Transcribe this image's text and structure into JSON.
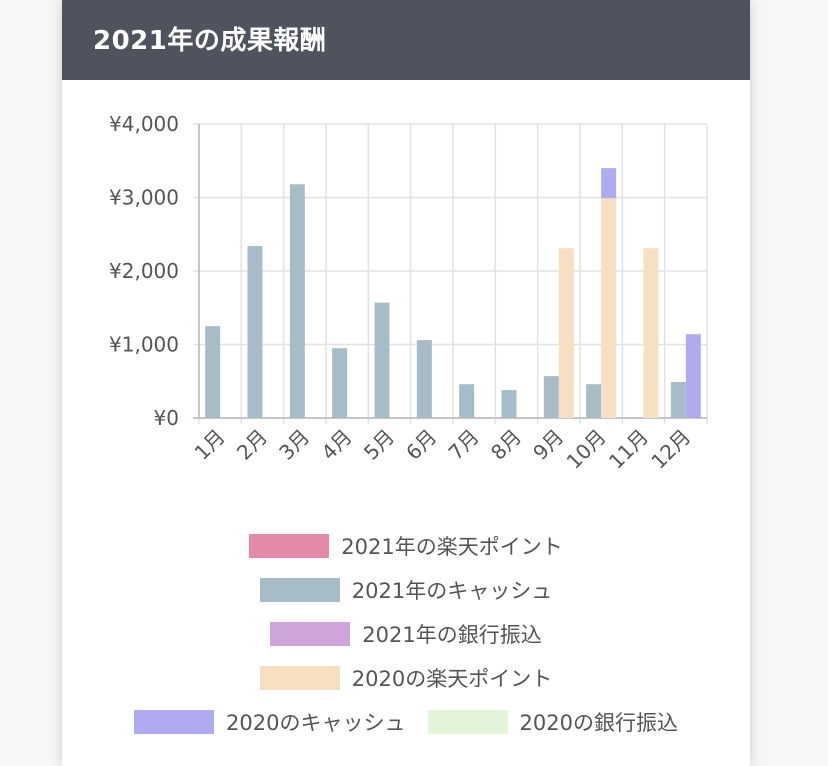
{
  "card": {
    "title": "2021年の成果報酬"
  },
  "chart_data": {
    "type": "bar",
    "stacked": true,
    "categories": [
      "1月",
      "2月",
      "3月",
      "4月",
      "5月",
      "6月",
      "7月",
      "8月",
      "9月",
      "10月",
      "11月",
      "12月"
    ],
    "ylim": [
      0,
      4000
    ],
    "yticks": [
      {
        "value": 0,
        "label": "¥0"
      },
      {
        "value": 1000,
        "label": "¥1,000"
      },
      {
        "value": 2000,
        "label": "¥2,000"
      },
      {
        "value": 3000,
        "label": "¥3,000"
      },
      {
        "value": 4000,
        "label": "¥4,000"
      }
    ],
    "grid": true,
    "legend_position": "bottom",
    "stacks": [
      "2021",
      "2020"
    ],
    "series": [
      {
        "name": "2021年の楽天ポイント",
        "color": "#e48aa8",
        "stack": "2021",
        "values": [
          0,
          0,
          0,
          0,
          0,
          0,
          0,
          0,
          0,
          0,
          0,
          0
        ]
      },
      {
        "name": "2021年のキャッシュ",
        "color": "#a6bdc8",
        "stack": "2021",
        "values": [
          1250,
          2340,
          3180,
          950,
          1570,
          1060,
          460,
          380,
          570,
          460,
          0,
          490
        ]
      },
      {
        "name": "2021年の銀行振込",
        "color": "#cfa6dc",
        "stack": "2021",
        "values": [
          0,
          0,
          0,
          0,
          0,
          0,
          0,
          0,
          0,
          0,
          0,
          0
        ]
      },
      {
        "name": "2020の楽天ポイント",
        "color": "#f7dfc1",
        "stack": "2020",
        "values": [
          0,
          0,
          0,
          0,
          0,
          0,
          0,
          0,
          2310,
          2990,
          2310,
          0
        ]
      },
      {
        "name": "2020のキャッシュ",
        "color": "#b0aaf0",
        "stack": "2020",
        "values": [
          0,
          0,
          0,
          0,
          0,
          0,
          0,
          0,
          0,
          410,
          0,
          1140
        ]
      },
      {
        "name": "2020の銀行振込",
        "color": "#e3f5d8",
        "stack": "2020",
        "values": [
          0,
          0,
          0,
          0,
          0,
          0,
          0,
          0,
          0,
          0,
          0,
          0
        ]
      }
    ]
  }
}
